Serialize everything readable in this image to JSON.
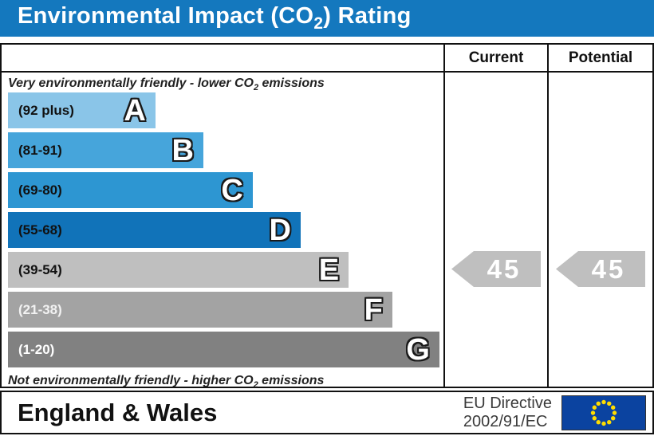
{
  "header_color": "#1478BE",
  "title": {
    "pre": "Environmental Impact (CO",
    "sub": "2",
    "post": ") Rating"
  },
  "columns": {
    "current": "Current",
    "potential": "Potential"
  },
  "notes": {
    "top": {
      "pre": "Very environmentally friendly - lower CO",
      "sub": "2",
      "post": " emissions"
    },
    "bottom": {
      "pre": "Not environmentally friendly - higher CO",
      "sub": "2",
      "post": " emissions"
    }
  },
  "bands": [
    {
      "letter": "A",
      "range_label": "(92 plus)",
      "color": "#8AC5E8",
      "label_color": "#111111",
      "width_pct": 34.1
    },
    {
      "letter": "B",
      "range_label": "(81-91)",
      "color": "#46A5DB",
      "label_color": "#111111",
      "width_pct": 45.2
    },
    {
      "letter": "C",
      "range_label": "(69-80)",
      "color": "#2D96D2",
      "label_color": "#111111",
      "width_pct": 56.6
    },
    {
      "letter": "D",
      "range_label": "(55-68)",
      "color": "#1173B9",
      "label_color": "#111111",
      "width_pct": 67.7
    },
    {
      "letter": "E",
      "range_label": "(39-54)",
      "color": "#BFBFBF",
      "label_color": "#111111",
      "width_pct": 78.8
    },
    {
      "letter": "F",
      "range_label": "(21-38)",
      "color": "#A3A3A3",
      "label_color": "#F2F2F2",
      "width_pct": 88.9
    },
    {
      "letter": "G",
      "range_label": "(1-20)",
      "color": "#818181",
      "label_color": "#FFFFFF",
      "width_pct": 99.8
    }
  ],
  "ratings": {
    "current": {
      "value": "45",
      "band_row": 4,
      "arrow_color": "#BFBFBF"
    },
    "potential": {
      "value": "45",
      "band_row": 4,
      "arrow_color": "#BFBFBF"
    }
  },
  "footer": {
    "region": "England & Wales",
    "directive_line1": "EU Directive",
    "directive_line2": "2002/91/EC"
  },
  "flag": {
    "background": "#0B43A0",
    "star_color": "#FFDD00",
    "border_color": "#333333"
  },
  "chart_data": {
    "type": "bar",
    "title": "Environmental Impact (CO2) Rating",
    "categories": [
      "A",
      "B",
      "C",
      "D",
      "E",
      "F",
      "G"
    ],
    "band_ranges": [
      "92 plus",
      "81-91",
      "69-80",
      "55-68",
      "39-54",
      "21-38",
      "1-20"
    ],
    "band_colors": [
      "#8AC5E8",
      "#46A5DB",
      "#2D96D2",
      "#1173B9",
      "#BFBFBF",
      "#A3A3A3",
      "#818181"
    ],
    "bar_width_pct": [
      34.1,
      45.2,
      56.6,
      67.7,
      78.8,
      88.9,
      99.8
    ],
    "series": [
      {
        "name": "Current",
        "value": 45,
        "band": "E"
      },
      {
        "name": "Potential",
        "value": 45,
        "band": "E"
      }
    ],
    "top_annotation": "Very environmentally friendly - lower CO2 emissions",
    "bottom_annotation": "Not environmentally friendly - higher CO2 emissions",
    "footer_left": "England & Wales",
    "footer_right": "EU Directive 2002/91/EC",
    "legend": "off",
    "grid": "off"
  }
}
